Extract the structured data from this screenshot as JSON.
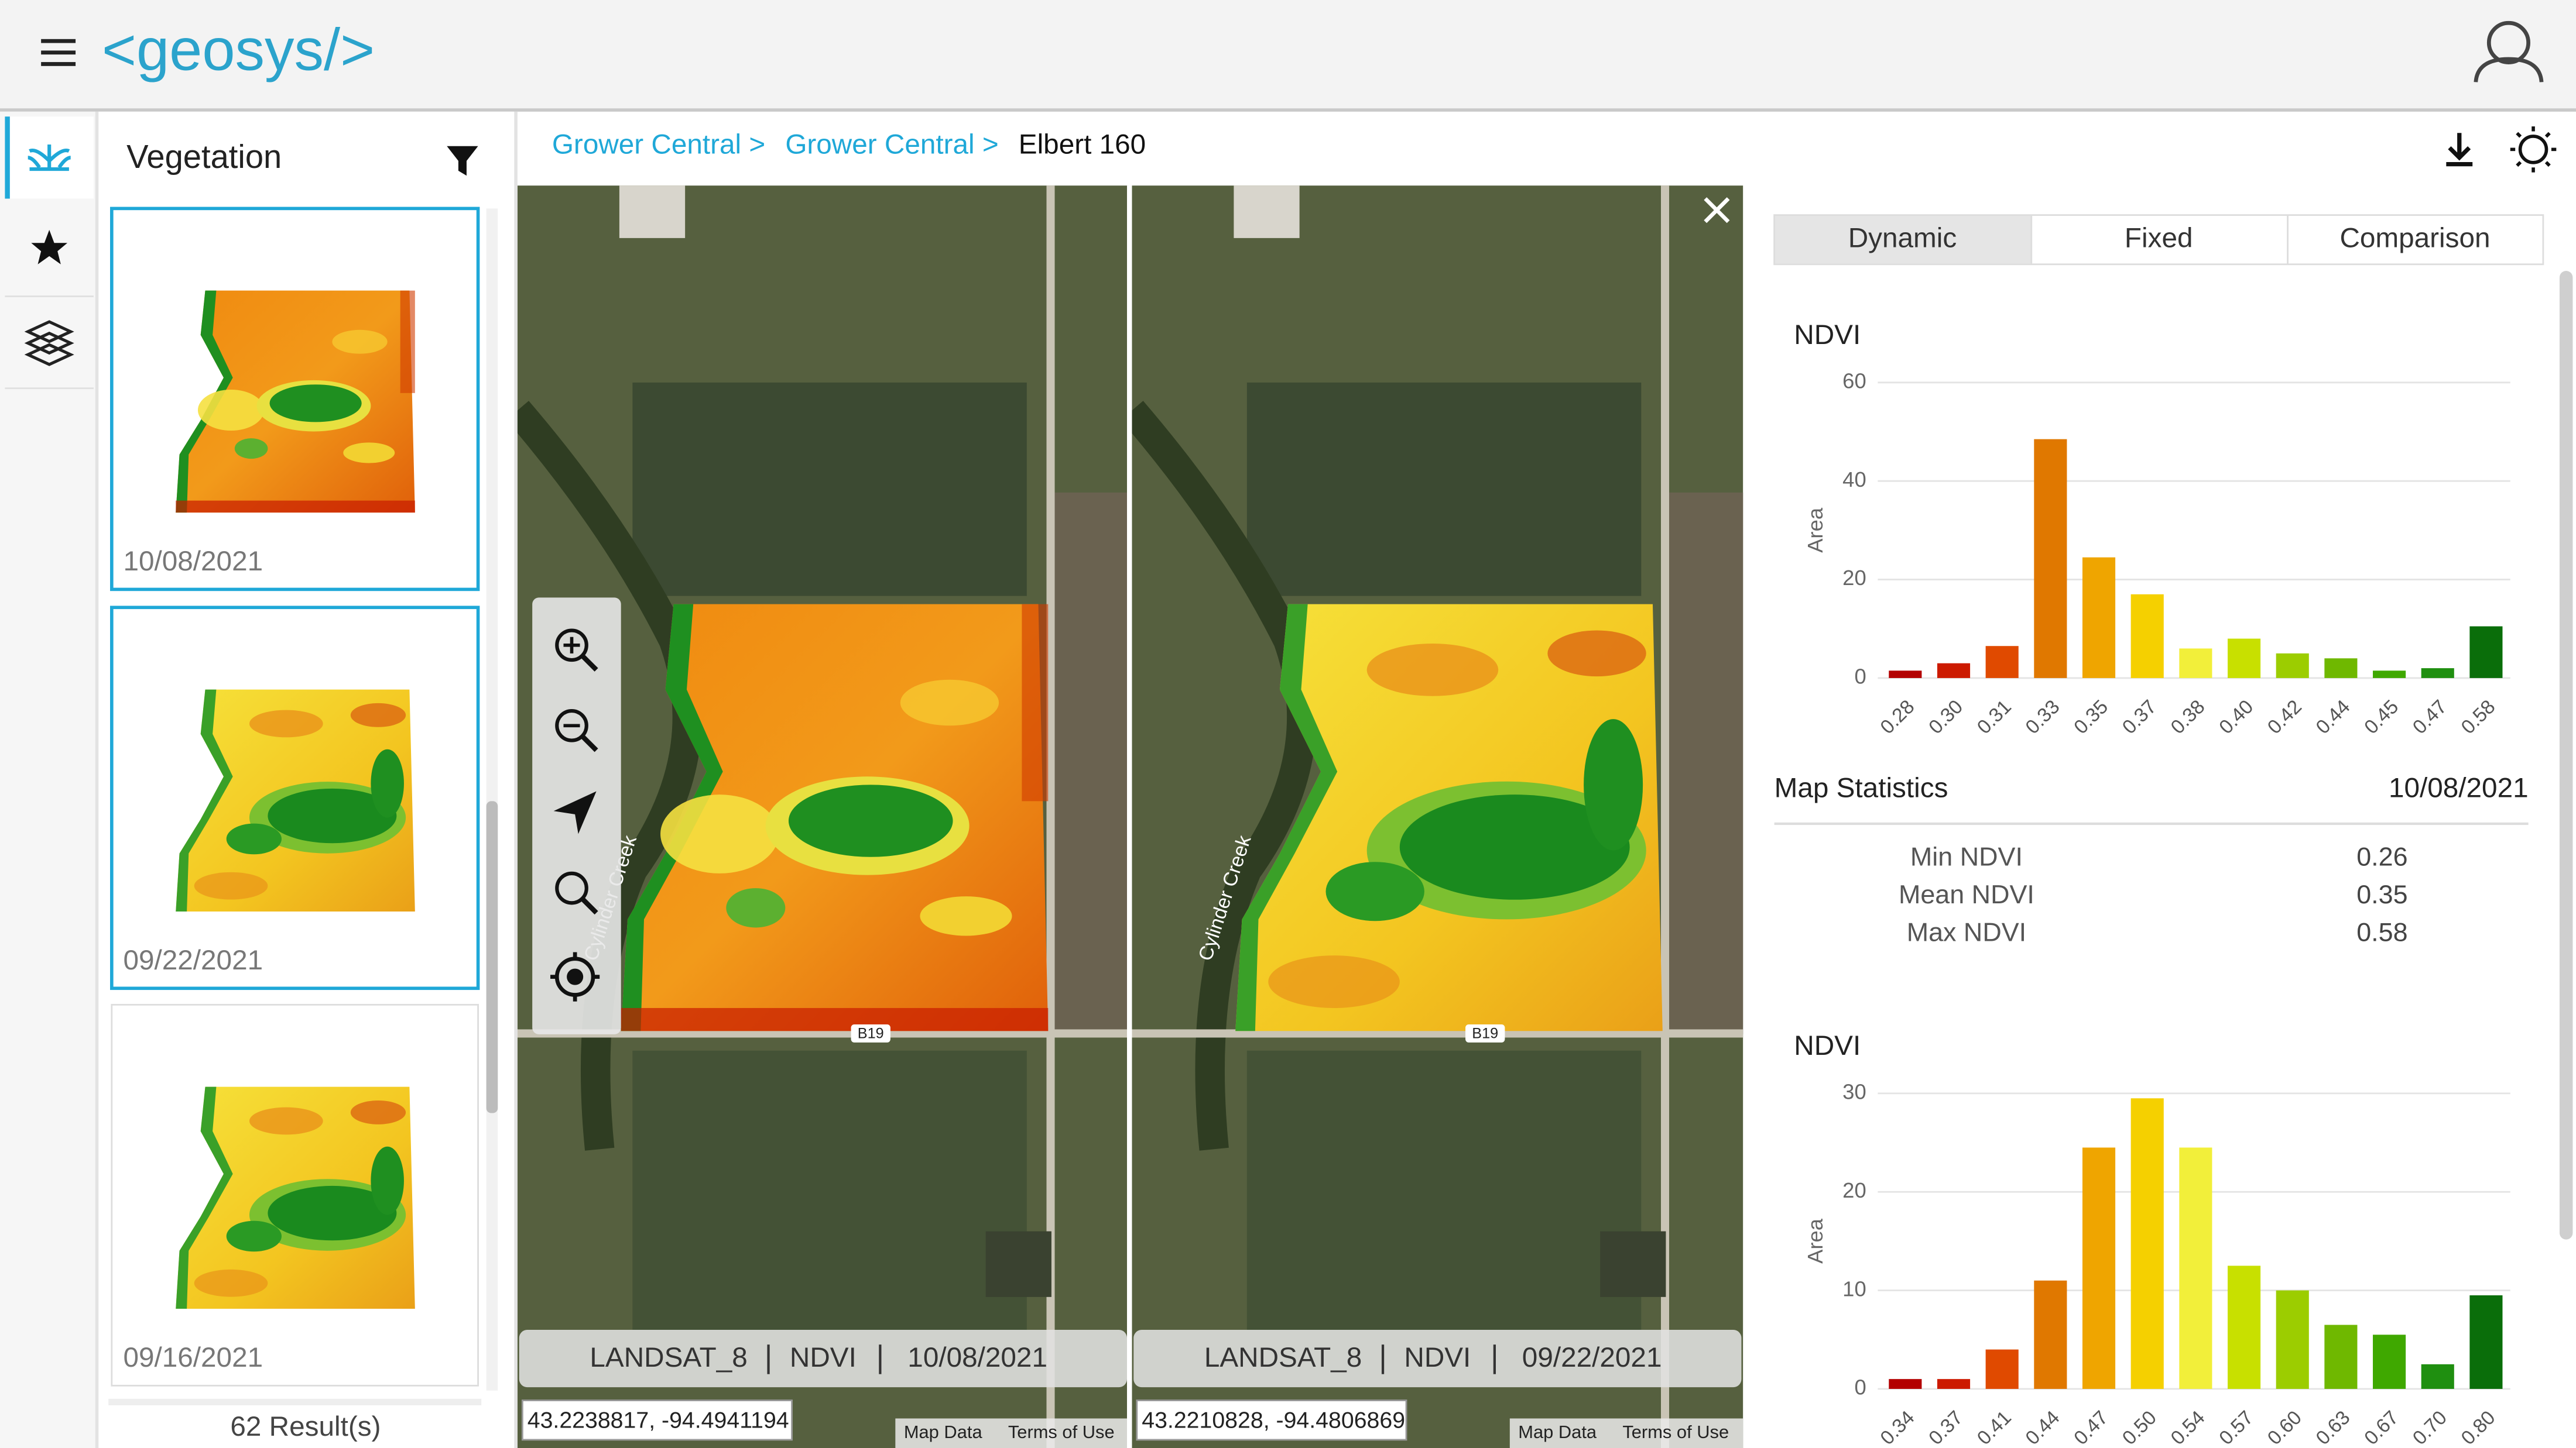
{
  "header": {
    "logo": "<geosys/>"
  },
  "sidebar": {
    "title": "Vegetation",
    "cards": [
      {
        "date": "10/08/2021"
      },
      {
        "date": "09/22/2021"
      },
      {
        "date": "09/16/2021"
      }
    ],
    "results": "62 Result(s)"
  },
  "breadcrumb": [
    "Grower Central >",
    "Grower Central >",
    "Elbert 160"
  ],
  "maps": [
    {
      "source": "LANDSAT_8",
      "index": "NDVI",
      "date": "10/08/2021",
      "coords": "43.2238817, -94.4941194",
      "creek": "Cylinder Creek",
      "road": "B19"
    },
    {
      "source": "LANDSAT_8",
      "index": "NDVI",
      "date": "09/22/2021",
      "coords": "43.2210828, -94.4806869",
      "creek": "Cylinder Creek",
      "road": "B19"
    }
  ],
  "map_links": [
    "Map Data",
    "Terms of Use"
  ],
  "tabs": [
    "Dynamic",
    "Fixed",
    "Comparison"
  ],
  "chart_data": [
    {
      "type": "bar",
      "title": "NDVI",
      "y_label": "Area",
      "categories": [
        "0.28",
        "0.30",
        "0.31",
        "0.33",
        "0.35",
        "0.37",
        "0.38",
        "0.40",
        "0.42",
        "0.44",
        "0.45",
        "0.47",
        "0.58"
      ],
      "values": [
        1.5,
        3,
        6.5,
        48.5,
        24.5,
        17,
        6,
        8,
        5,
        4,
        1.5,
        2,
        10.5
      ],
      "colors": [
        "#b30000",
        "#cc1a00",
        "#e04a00",
        "#e07800",
        "#efa500",
        "#f5d000",
        "#f2ef3a",
        "#c8e000",
        "#9ccd00",
        "#6fb800",
        "#3fa800",
        "#1f8f10",
        "#0a6e0a"
      ],
      "ylim": [
        0,
        60
      ],
      "yticks": [
        0,
        20,
        40,
        60
      ],
      "grid": true
    },
    {
      "type": "bar",
      "title": "NDVI",
      "y_label": "Area",
      "categories": [
        "0.34",
        "0.37",
        "0.41",
        "0.44",
        "0.47",
        "0.50",
        "0.54",
        "0.57",
        "0.60",
        "0.63",
        "0.67",
        "0.70",
        "0.80"
      ],
      "values": [
        1,
        1,
        4,
        11,
        24.5,
        29.5,
        24.5,
        12.5,
        10,
        6.5,
        5.5,
        2.5,
        9.5
      ],
      "colors": [
        "#b30000",
        "#cc1a00",
        "#e04a00",
        "#e07800",
        "#efa500",
        "#f5d000",
        "#f2ef3a",
        "#c8e000",
        "#9ccd00",
        "#6fb800",
        "#3fa800",
        "#1f8f10",
        "#0a6e0a"
      ],
      "ylim": [
        0,
        30
      ],
      "yticks": [
        0,
        10,
        20,
        30
      ],
      "grid": true
    }
  ],
  "statistics": {
    "title": "Map Statistics",
    "date": "10/08/2021",
    "rows": [
      {
        "label": "Min NDVI",
        "value": 0.26
      },
      {
        "label": "Mean NDVI",
        "value": 0.35
      },
      {
        "label": "Max NDVI",
        "value": 0.58
      }
    ]
  }
}
